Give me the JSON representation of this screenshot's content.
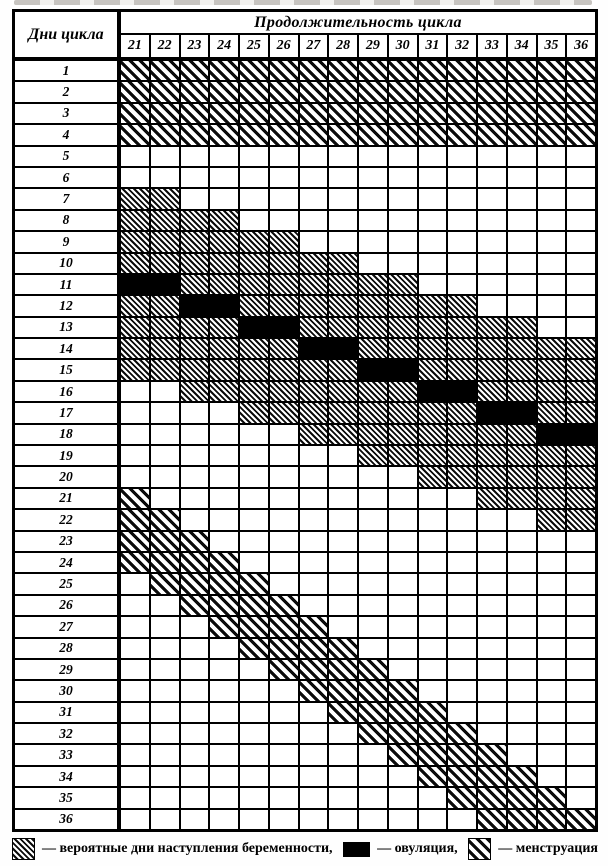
{
  "page": {
    "paper_color": "#fefefe",
    "ink_color": "#000000"
  },
  "table": {
    "corner_label": "Дни цикла",
    "title": "Продолжительность цикла"
  },
  "legend": [
    {
      "swatch": "fertile-hatch-swatch",
      "label": "— вероятные дни наступления беременности,"
    },
    {
      "swatch": "ovulation-swatch",
      "label": "— овуляция,"
    },
    {
      "swatch": "menstruation-hatch-swatch",
      "label": "— менструация"
    }
  ],
  "chart_data": {
    "type": "heatmap",
    "title": "Продолжительность цикла",
    "x_axis": {
      "label": "Продолжительность цикла",
      "ticks": [
        21,
        22,
        23,
        24,
        25,
        26,
        27,
        28,
        29,
        30,
        31,
        32,
        33,
        34,
        35,
        36
      ]
    },
    "y_axis": {
      "label": "Дни цикла",
      "ticks": [
        1,
        2,
        3,
        4,
        5,
        6,
        7,
        8,
        9,
        10,
        11,
        12,
        13,
        14,
        15,
        16,
        17,
        18,
        19,
        20,
        21,
        22,
        23,
        24,
        25,
        26,
        27,
        28,
        29,
        30,
        31,
        32,
        33,
        34,
        35,
        36
      ]
    },
    "cell_codes": {
      "M": "менструация (светлая штриховка)",
      "F": "вероятные дни наступления беременности (плотная штриховка)",
      "O": "овуляция (чёрная ячейка)",
      ".": "пустая ячейка"
    },
    "grid": [
      "MMMMMMMMMMMMMMMM",
      "MMMMMMMMMMMMMMMM",
      "MMMMMMMMMMMMMMMM",
      "MMMMMMMMMMMMMMMM",
      "................",
      "................",
      "FF..............",
      "FFFF............",
      "FFFFFF..........",
      "FFFFFFFF........",
      "OOFFFFFFFF......",
      "FFOOFFFFFFFF....",
      "FFFFOOFFFFFFFF..",
      "FFFFFFOOFFFFFFFF",
      "FFFFFFFFOOFFFFFF",
      "..FFFFFFFFOOFFFF",
      "....FFFFFFFFOOFF",
      "......FFFFFFFFOO",
      "........FFFFFFFF",
      "..........FFFFFF",
      "M...........FFFF",
      "MM............FF",
      "MMM.............",
      "MMMM............",
      ".MMMM...........",
      "..MMMM..........",
      "...MMMM.........",
      "....MMMM........",
      ".....MMMM.......",
      "......MMMM......",
      ".......MMMM.....",
      "........MMMM....",
      ".........MMMM...",
      "..........MMMM..",
      "...........MMMM.",
      "............MMMM"
    ]
  }
}
